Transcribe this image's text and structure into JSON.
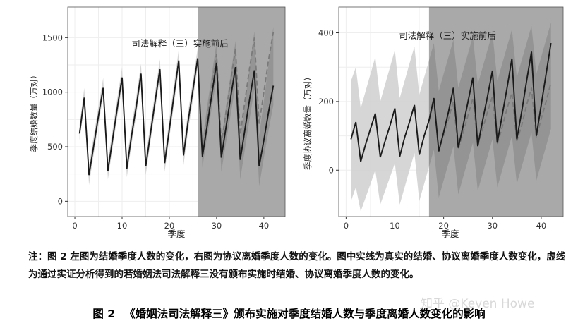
{
  "chart_data": [
    {
      "type": "line",
      "annotation": "司法解释（三）实施前后",
      "xlabel": "季度",
      "ylabel": "季度结婚数量（万对）",
      "xlim": [
        -1.5,
        44.5
      ],
      "ylim": [
        -140,
        1780
      ],
      "xticks": [
        0,
        10,
        20,
        30,
        40
      ],
      "yticks": [
        0,
        500,
        1000,
        1500
      ],
      "xtick_labels": [
        "0",
        "10",
        "20",
        "30",
        "40"
      ],
      "ytick_labels": [
        "0",
        "500",
        "1000",
        "1500"
      ],
      "grid": true,
      "treatment_start": 26,
      "colors": {
        "panel_bg": "#ebebeb",
        "shade": "#a9a9a9",
        "band": "#cfcfcf",
        "band_post": "#8e8e8e",
        "actual": "#1a1a1a",
        "counterfactual": "#7a7a7a"
      },
      "actual": {
        "x": [
          1,
          2,
          3,
          4,
          5,
          6,
          7,
          8,
          9,
          10,
          11,
          12,
          13,
          14,
          15,
          16,
          17,
          18,
          19,
          20,
          21,
          22,
          23,
          24,
          25,
          26,
          27,
          28,
          29,
          30,
          31,
          32,
          33,
          34,
          35,
          36,
          37,
          38,
          39,
          40,
          41,
          42
        ],
        "y": [
          620,
          950,
          240,
          510,
          780,
          1040,
          280,
          570,
          860,
          1135,
          300,
          600,
          870,
          1170,
          320,
          620,
          920,
          1210,
          350,
          660,
          980,
          1290,
          420,
          740,
          1020,
          1310,
          410,
          690,
          980,
          1270,
          400,
          680,
          960,
          1230,
          380,
          660,
          940,
          1200,
          320,
          560,
          820,
          1060
        ]
      },
      "counterfactual": {
        "x": [
          26,
          27,
          28,
          29,
          30,
          31,
          32,
          33,
          34,
          35,
          36,
          37,
          38,
          39,
          40,
          41,
          42
        ],
        "y": [
          1310,
          430,
          760,
          1050,
          1350,
          520,
          820,
          1110,
          1400,
          610,
          920,
          1230,
          1500,
          710,
          1000,
          1300,
          1550
        ]
      },
      "band": {
        "x": [
          1,
          2,
          3,
          4,
          5,
          6,
          7,
          8,
          9,
          10,
          11,
          12,
          13,
          14,
          15,
          16,
          17,
          18,
          19,
          20,
          21,
          22,
          23,
          24,
          25,
          26,
          27,
          28,
          29,
          30,
          31,
          32,
          33,
          34,
          35,
          36,
          37,
          38,
          39,
          40,
          41,
          42
        ],
        "lower": [
          560,
          870,
          150,
          430,
          700,
          960,
          200,
          490,
          780,
          1050,
          220,
          520,
          790,
          1090,
          240,
          540,
          840,
          1130,
          270,
          580,
          890,
          1200,
          330,
          650,
          930,
          1220,
          310,
          590,
          860,
          1130,
          270,
          540,
          800,
          1070,
          200,
          480,
          760,
          1030,
          140,
          400,
          650,
          880
        ],
        "upper": [
          700,
          1040,
          330,
          600,
          870,
          1130,
          370,
          660,
          950,
          1230,
          390,
          690,
          960,
          1260,
          410,
          710,
          1010,
          1300,
          440,
          750,
          1080,
          1390,
          520,
          830,
          1110,
          1400,
          550,
          870,
          1160,
          1460,
          560,
          870,
          1170,
          1470,
          580,
          900,
          1230,
          1560,
          600,
          920,
          1260,
          1600
        ]
      }
    },
    {
      "type": "line",
      "annotation": "司法解释（三）实施前后",
      "xlabel": "季度",
      "ylabel": "季度协议离婚数量（万对）",
      "xlim": [
        -1.5,
        44.5
      ],
      "ylim": [
        -135,
        475
      ],
      "xticks": [
        0,
        10,
        20,
        30,
        40
      ],
      "yticks": [
        0,
        200,
        400
      ],
      "xtick_labels": [
        "0",
        "10",
        "20",
        "30",
        "40"
      ],
      "ytick_labels": [
        "0",
        "200",
        "400"
      ],
      "grid": true,
      "treatment_start": 17,
      "colors": {
        "panel_bg": "#ebebeb",
        "shade": "#a9a9a9",
        "band": "#cfcfcf",
        "band_post": "#8e8e8e",
        "actual": "#1a1a1a",
        "counterfactual": "#7a7a7a"
      },
      "actual": {
        "x": [
          1,
          2,
          3,
          4,
          5,
          6,
          7,
          8,
          9,
          10,
          11,
          12,
          13,
          14,
          15,
          16,
          17,
          18,
          19,
          20,
          21,
          22,
          23,
          24,
          25,
          26,
          27,
          28,
          29,
          30,
          31,
          32,
          33,
          34,
          35,
          36,
          37,
          38,
          39,
          40,
          41,
          42
        ],
        "y": [
          90,
          140,
          25,
          75,
          120,
          165,
          38,
          85,
          130,
          180,
          40,
          95,
          140,
          190,
          45,
          100,
          145,
          210,
          55,
          110,
          170,
          240,
          65,
          130,
          200,
          270,
          70,
          145,
          215,
          290,
          80,
          160,
          240,
          325,
          90,
          170,
          260,
          345,
          100,
          190,
          280,
          370
        ]
      },
      "counterfactual": {
        "x": [
          17,
          18,
          19,
          20,
          21,
          22,
          23,
          24,
          25,
          26,
          27,
          28,
          29,
          30,
          31,
          32,
          33,
          34,
          35,
          36,
          37,
          38,
          39,
          40,
          41,
          42
        ],
        "y": [
          145,
          200,
          55,
          100,
          150,
          200,
          60,
          110,
          160,
          210,
          70,
          120,
          170,
          215,
          75,
          125,
          180,
          225,
          85,
          130,
          190,
          240,
          95,
          150,
          200,
          255
        ]
      },
      "band": {
        "x": [
          1,
          2,
          3,
          4,
          5,
          6,
          7,
          8,
          9,
          10,
          11,
          12,
          13,
          14,
          15,
          16,
          17,
          18,
          19,
          20,
          21,
          22,
          23,
          24,
          25,
          26,
          27,
          28,
          29,
          30,
          31,
          32,
          33,
          34,
          35,
          36,
          37,
          38,
          39,
          40,
          41,
          42
        ],
        "lower": [
          -90,
          -50,
          -120,
          -80,
          -40,
          0,
          -100,
          -60,
          -20,
          20,
          -100,
          -50,
          0,
          50,
          -90,
          -40,
          10,
          60,
          -80,
          -30,
          20,
          70,
          -70,
          -20,
          30,
          80,
          -60,
          -10,
          40,
          90,
          -50,
          0,
          50,
          100,
          -40,
          10,
          60,
          110,
          -30,
          20,
          70,
          120
        ],
        "upper": [
          260,
          300,
          180,
          230,
          280,
          330,
          200,
          250,
          300,
          350,
          210,
          260,
          310,
          360,
          220,
          270,
          320,
          370,
          230,
          280,
          330,
          380,
          240,
          290,
          340,
          390,
          250,
          300,
          350,
          400,
          260,
          310,
          360,
          410,
          270,
          320,
          370,
          420,
          280,
          330,
          380,
          430
        ]
      }
    }
  ],
  "note": {
    "lead": "注：",
    "text": "图 2 左图为结婚季度人数的变化，右图为协议离婚季度人数的变化。图中实线为真实的结婚、协议离婚季度人数变化，虚线为通过实证分析得到的若婚姻法司法解释三没有颁布实施时结婚、协议离婚季度人数的变化。"
  },
  "caption": "图 2 　《婚姻法司法解释三》颁布实施对季度结婚人数与季度离婚人数变化的影响",
  "watermark": "知乎 @Keven Howe"
}
